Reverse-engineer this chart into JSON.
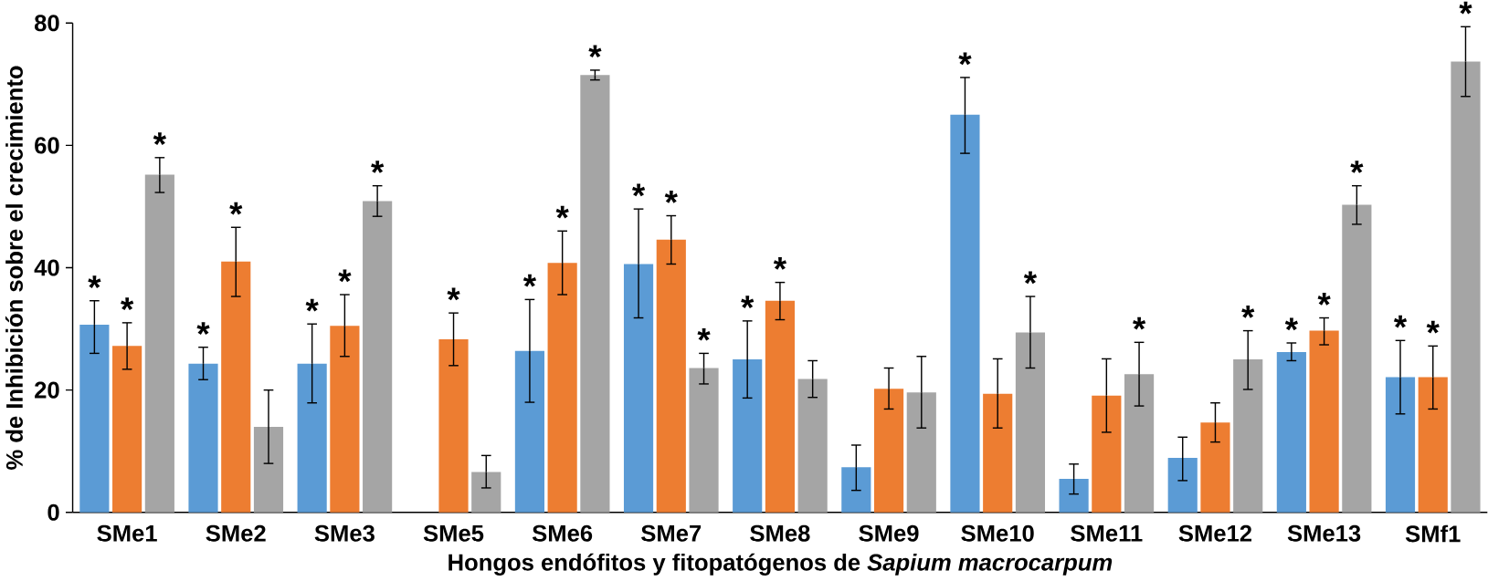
{
  "chart_data": {
    "type": "bar",
    "ylabel": "% de Inhibición sobre el crecimiento",
    "xlabel": "Hongos endófitos y fitopatógenos de *Sapium macrocarpum*",
    "categories": [
      "SMe1",
      "SMe2",
      "SMe3",
      "SMe5",
      "SMe6",
      "SMe7",
      "SMe8",
      "SMe9",
      "SMe10",
      "SMe11",
      "SMe12",
      "SMe13",
      "SMf1"
    ],
    "ylim": [
      0,
      80
    ],
    "yticks": [
      0,
      20,
      40,
      60,
      80
    ],
    "series": [
      {
        "color": "#5b9bd5",
        "values": [
          30.7,
          24.3,
          24.3,
          null,
          26.4,
          40.6,
          25,
          7.4,
          65,
          5.5,
          8.9,
          26.2,
          22.1
        ],
        "errors": [
          [
            26,
            34.6
          ],
          [
            21.7,
            27
          ],
          [
            17.9,
            30.8
          ],
          null,
          [
            18,
            34.8
          ],
          [
            31.8,
            49.6
          ],
          [
            18.7,
            31.3
          ],
          [
            3.6,
            11
          ],
          [
            58.7,
            71.1
          ],
          [
            3,
            7.9
          ],
          [
            5.2,
            12.3
          ],
          [
            24.8,
            27.7
          ],
          [
            16.1,
            28.1
          ]
        ],
        "value_labels": [
          "*",
          "*",
          "*",
          null,
          "*",
          "*",
          "*",
          null,
          "*",
          null,
          null,
          "*",
          "*"
        ]
      },
      {
        "color": "#ed7d31",
        "values": [
          27.2,
          41,
          30.5,
          28.3,
          40.8,
          44.6,
          34.6,
          20.2,
          19.4,
          19.1,
          14.7,
          29.7,
          22.1
        ],
        "errors": [
          [
            23.4,
            31
          ],
          [
            35.3,
            46.6
          ],
          [
            25.5,
            35.6
          ],
          [
            24,
            32.6
          ],
          [
            35.6,
            46
          ],
          [
            40.6,
            48.5
          ],
          [
            31.5,
            37.6
          ],
          [
            16.9,
            23.6
          ],
          [
            13.8,
            25.1
          ],
          [
            13.1,
            25.1
          ],
          [
            11.5,
            17.9
          ],
          [
            27.4,
            31.8
          ],
          [
            16.9,
            27.2
          ]
        ],
        "value_labels": [
          "*",
          "*",
          "*",
          "*",
          "*",
          "*",
          "*",
          null,
          null,
          null,
          null,
          "*",
          "*"
        ]
      },
      {
        "color": "#a5a5a5",
        "values": [
          55.2,
          14,
          50.9,
          6.6,
          71.5,
          23.6,
          21.8,
          19.6,
          29.4,
          22.6,
          25,
          50.3,
          73.7
        ],
        "errors": [
          [
            52.3,
            58
          ],
          [
            8,
            20
          ],
          [
            48.4,
            53.4
          ],
          [
            4,
            9.3
          ],
          [
            70.7,
            72.3
          ],
          [
            21,
            26
          ],
          [
            18.8,
            24.8
          ],
          [
            13.8,
            25.5
          ],
          [
            23.6,
            35.3
          ],
          [
            17.4,
            27.8
          ],
          [
            20.1,
            29.7
          ],
          [
            47.1,
            53.4
          ],
          [
            68,
            79.4
          ]
        ],
        "value_labels": [
          "*",
          null,
          "*",
          null,
          "*",
          "*",
          null,
          null,
          "*",
          "*",
          "*",
          "*",
          "*"
        ]
      }
    ]
  }
}
